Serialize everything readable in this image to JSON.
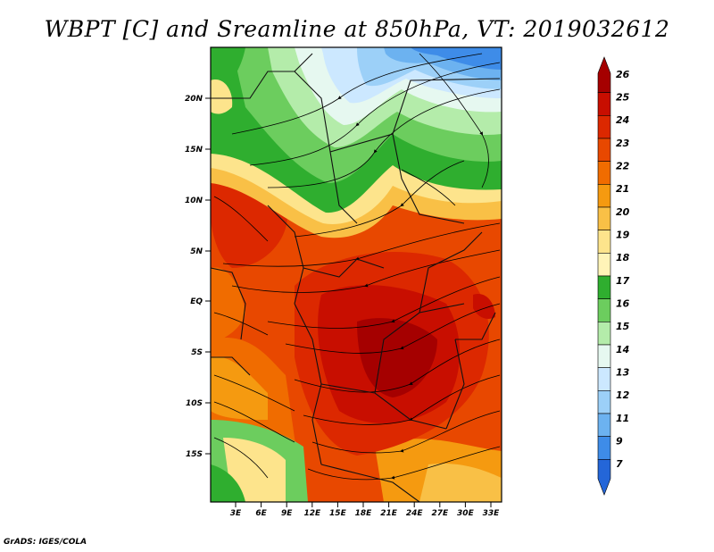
{
  "title": "WBPT [C] and Sreamline at 850hPa, VT: 2019032612",
  "footer": "GrADS: IGES/COLA",
  "map": {
    "lat_labels": [
      "20N",
      "15N",
      "10N",
      "5N",
      "EQ",
      "5S",
      "10S",
      "15S"
    ],
    "lon_labels": [
      "3E",
      "6E",
      "9E",
      "12E",
      "15E",
      "18E",
      "21E",
      "24E",
      "27E",
      "30E",
      "33E"
    ]
  },
  "colorbar": {
    "labels": [
      "26",
      "25",
      "24",
      "23",
      "22",
      "21",
      "20",
      "19",
      "18",
      "17",
      "16",
      "15",
      "14",
      "13",
      "12",
      "11",
      "9",
      "7"
    ],
    "colors": [
      "#a50000",
      "#c80e00",
      "#dc2800",
      "#e84800",
      "#f06c00",
      "#f59a10",
      "#f9c046",
      "#fde48c",
      "#fff4b8",
      "#2fae2f",
      "#6ccd5e",
      "#b4ecaa",
      "#e6f8f0",
      "#cce8ff",
      "#9cd0f8",
      "#6cb2f0",
      "#3e8ce8",
      "#2466d8"
    ]
  }
}
